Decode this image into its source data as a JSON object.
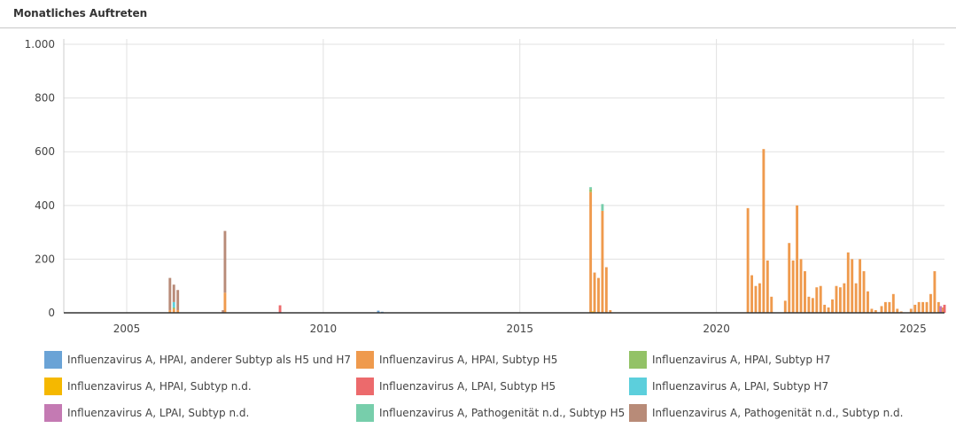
{
  "panel": {
    "title": "Monatliches Auftreten"
  },
  "chart_data": {
    "type": "bar",
    "stacked": true,
    "title": "",
    "xlabel": "",
    "ylabel": "",
    "x_ticks": [
      2005,
      2010,
      2015,
      2020,
      2025
    ],
    "x_range": [
      2003.4,
      2025.8
    ],
    "y_ticks": [
      0,
      200,
      400,
      600,
      800,
      1000
    ],
    "y_tick_labels": [
      "0",
      "200",
      "400",
      "600",
      "800",
      "1.000"
    ],
    "ylim": [
      0,
      1020
    ],
    "grid": true,
    "legend_position": "bottom",
    "series": [
      {
        "name": "Influenzavirus A, HPAI, anderer Subtyp als H5 und H7",
        "color": "#6aa3d6",
        "points": [
          [
            2011.4,
            8
          ],
          [
            2011.5,
            4
          ]
        ]
      },
      {
        "name": "Influenzavirus A, HPAI, Subtyp H5",
        "color": "#ef9a4d",
        "points": [
          [
            2006.1,
            10
          ],
          [
            2006.2,
            15
          ],
          [
            2006.3,
            10
          ],
          [
            2007.5,
            75
          ],
          [
            2016.8,
            450
          ],
          [
            2016.9,
            150
          ],
          [
            2017.0,
            130
          ],
          [
            2017.1,
            380
          ],
          [
            2017.2,
            170
          ],
          [
            2017.3,
            10
          ],
          [
            2020.8,
            390
          ],
          [
            2020.9,
            140
          ],
          [
            2021.0,
            100
          ],
          [
            2021.1,
            110
          ],
          [
            2021.2,
            610
          ],
          [
            2021.3,
            195
          ],
          [
            2021.4,
            60
          ],
          [
            2021.75,
            45
          ],
          [
            2021.85,
            260
          ],
          [
            2021.95,
            195
          ],
          [
            2022.05,
            400
          ],
          [
            2022.15,
            200
          ],
          [
            2022.25,
            155
          ],
          [
            2022.35,
            60
          ],
          [
            2022.45,
            55
          ],
          [
            2022.55,
            95
          ],
          [
            2022.65,
            100
          ],
          [
            2022.75,
            30
          ],
          [
            2022.85,
            20
          ],
          [
            2022.95,
            50
          ],
          [
            2023.05,
            100
          ],
          [
            2023.15,
            95
          ],
          [
            2023.25,
            110
          ],
          [
            2023.35,
            225
          ],
          [
            2023.45,
            200
          ],
          [
            2023.55,
            110
          ],
          [
            2023.65,
            200
          ],
          [
            2023.75,
            155
          ],
          [
            2023.85,
            80
          ],
          [
            2023.95,
            15
          ],
          [
            2024.05,
            10
          ],
          [
            2024.2,
            25
          ],
          [
            2024.3,
            40
          ],
          [
            2024.4,
            40
          ],
          [
            2024.5,
            70
          ],
          [
            2024.6,
            15
          ],
          [
            2024.7,
            5
          ],
          [
            2024.95,
            15
          ],
          [
            2025.05,
            30
          ],
          [
            2025.15,
            40
          ],
          [
            2025.25,
            40
          ],
          [
            2025.35,
            40
          ],
          [
            2025.45,
            70
          ],
          [
            2025.55,
            155
          ],
          [
            2025.65,
            40
          ],
          [
            2025.75,
            20
          ],
          [
            2025.35,
            0
          ],
          [
            2025.6,
            0
          ],
          [
            2025.66,
            0
          ],
          [
            2025.73,
            0
          ]
        ]
      },
      {
        "name": "Influenzavirus A, HPAI, Subtyp H7",
        "color": "#93c266",
        "points": [
          [
            2006.2,
            5
          ],
          [
            2016.8,
            10
          ]
        ]
      },
      {
        "name": "Influenzavirus A, HPAI, Subtyp n.d.",
        "color": "#f5b800",
        "points": [
          [
            2016.85,
            5
          ]
        ]
      },
      {
        "name": "Influenzavirus A, LPAI, Subtyp H5",
        "color": "#ec6a6c",
        "points": [
          [
            2008.9,
            28
          ],
          [
            2025.8,
            30
          ]
        ]
      },
      {
        "name": "Influenzavirus A, LPAI, Subtyp H7",
        "color": "#5ccfdc",
        "points": [
          [
            2006.2,
            20
          ]
        ]
      },
      {
        "name": "Influenzavirus A, LPAI, Subtyp n.d.",
        "color": "#c47ab3",
        "points": [
          [
            2025.7,
            25
          ]
        ]
      },
      {
        "name": "Influenzavirus A, Pathogenität n.d., Subtyp H5",
        "color": "#77ceab",
        "points": [
          [
            2016.8,
            8
          ],
          [
            2017.1,
            25
          ]
        ]
      },
      {
        "name": "Influenzavirus A, Pathogenität n.d., Subtyp n.d.",
        "color": "#b88b78",
        "points": [
          [
            2006.1,
            120
          ],
          [
            2006.2,
            65
          ],
          [
            2006.3,
            75
          ],
          [
            2007.5,
            230
          ],
          [
            2007.45,
            10
          ]
        ]
      }
    ]
  }
}
